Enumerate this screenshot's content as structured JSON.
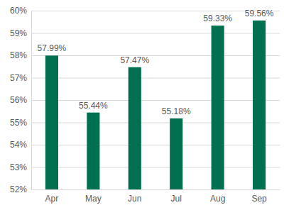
{
  "chart_data": {
    "type": "bar",
    "categories": [
      "Apr",
      "May",
      "Jun",
      "Jul",
      "Aug",
      "Sep"
    ],
    "values": [
      57.99,
      55.44,
      57.47,
      55.18,
      59.33,
      59.56
    ],
    "value_labels": [
      "57.99%",
      "55.44%",
      "57.47%",
      "55.18%",
      "59.33%",
      "59.56%"
    ],
    "color": "#007050",
    "ylim": [
      52,
      60
    ],
    "yticks": [
      {
        "value": 52,
        "label": "52%"
      },
      {
        "value": 53,
        "label": "53%"
      },
      {
        "value": 54,
        "label": "54%"
      },
      {
        "value": 55,
        "label": "55%"
      },
      {
        "value": 56,
        "label": "56%"
      },
      {
        "value": 57,
        "label": "57%"
      },
      {
        "value": 58,
        "label": "58%"
      },
      {
        "value": 59,
        "label": "59%"
      },
      {
        "value": 60,
        "label": "60%"
      }
    ],
    "grid": true,
    "data_labels": true
  }
}
